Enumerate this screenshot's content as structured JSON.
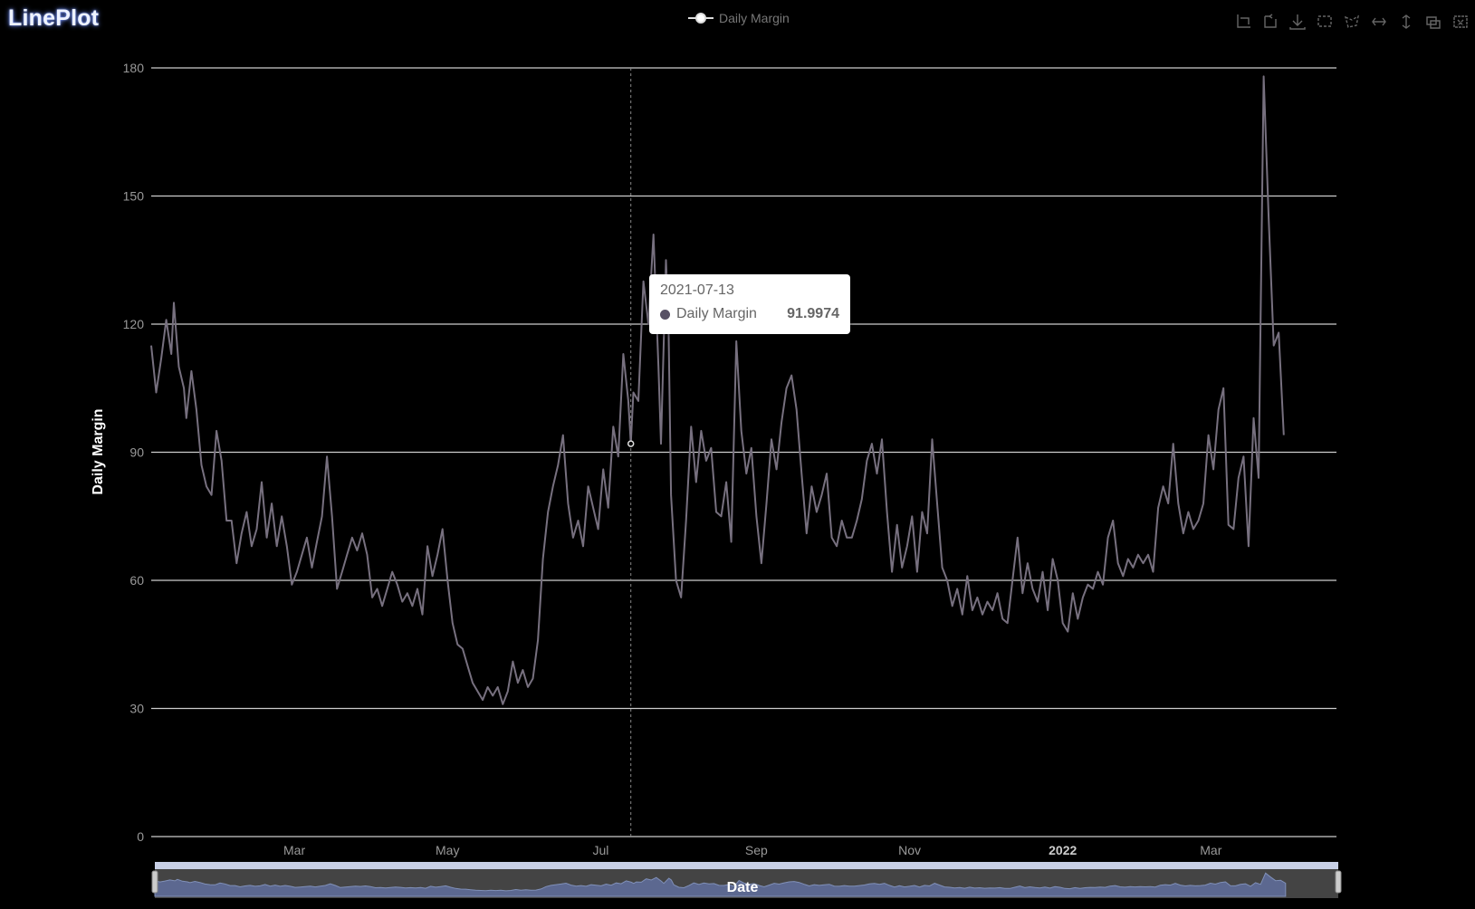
{
  "app": {
    "title": "LinePlot"
  },
  "legend": {
    "label": "Daily Margin"
  },
  "toolbox": {
    "icons": [
      "zoom-icon",
      "zoom-reset-icon",
      "save-image-icon",
      "brush-rect-icon",
      "brush-polygon-icon",
      "brush-line-x-icon",
      "brush-line-y-icon",
      "brush-keep-icon",
      "brush-clear-icon"
    ]
  },
  "tooltip": {
    "date": "2021-07-13",
    "series": "Daily Margin",
    "value": "91.9974"
  },
  "colors": {
    "line": "#77707f",
    "grid": "#cccccc",
    "slider_fill": "#5c6890",
    "tooltip_dot": "#575064"
  },
  "chart_data": {
    "type": "line",
    "title": "",
    "xlabel": "Date",
    "ylabel": "Daily Margin",
    "ylim": [
      0,
      180
    ],
    "yticks": [
      0,
      30,
      60,
      90,
      120,
      150,
      180
    ],
    "xticks": [
      {
        "date": "2021-03-01",
        "label": "Mar",
        "bold": false
      },
      {
        "date": "2021-05-01",
        "label": "May",
        "bold": false
      },
      {
        "date": "2021-07-01",
        "label": "Jul",
        "bold": false
      },
      {
        "date": "2021-09-01",
        "label": "Sep",
        "bold": false
      },
      {
        "date": "2021-11-01",
        "label": "Nov",
        "bold": false
      },
      {
        "date": "2022-01-01",
        "label": "2022",
        "bold": true
      },
      {
        "date": "2022-03-01",
        "label": "Mar",
        "bold": false
      }
    ],
    "xrange": [
      "2021-01-03",
      "2022-04-20"
    ],
    "grid": true,
    "legend": "top-center",
    "highlight": {
      "date": "2021-07-13",
      "value": 91.9974
    },
    "series": [
      {
        "name": "Daily Margin",
        "points": [
          [
            "2021-01-03",
            115
          ],
          [
            "2021-01-05",
            104
          ],
          [
            "2021-01-07",
            112
          ],
          [
            "2021-01-09",
            121
          ],
          [
            "2021-01-11",
            113
          ],
          [
            "2021-01-12",
            125
          ],
          [
            "2021-01-14",
            110
          ],
          [
            "2021-01-16",
            105
          ],
          [
            "2021-01-17",
            98
          ],
          [
            "2021-01-19",
            109
          ],
          [
            "2021-01-21",
            100
          ],
          [
            "2021-01-23",
            87
          ],
          [
            "2021-01-25",
            82
          ],
          [
            "2021-01-27",
            80
          ],
          [
            "2021-01-29",
            95
          ],
          [
            "2021-01-31",
            88
          ],
          [
            "2021-02-02",
            74
          ],
          [
            "2021-02-04",
            74
          ],
          [
            "2021-02-06",
            64
          ],
          [
            "2021-02-08",
            71
          ],
          [
            "2021-02-10",
            76
          ],
          [
            "2021-02-12",
            68
          ],
          [
            "2021-02-14",
            72
          ],
          [
            "2021-02-16",
            83
          ],
          [
            "2021-02-18",
            70
          ],
          [
            "2021-02-20",
            78
          ],
          [
            "2021-02-22",
            68
          ],
          [
            "2021-02-24",
            75
          ],
          [
            "2021-02-26",
            68
          ],
          [
            "2021-02-28",
            59
          ],
          [
            "2021-03-02",
            62
          ],
          [
            "2021-03-04",
            66
          ],
          [
            "2021-03-06",
            70
          ],
          [
            "2021-03-08",
            63
          ],
          [
            "2021-03-10",
            69
          ],
          [
            "2021-03-12",
            75
          ],
          [
            "2021-03-14",
            89
          ],
          [
            "2021-03-16",
            75
          ],
          [
            "2021-03-18",
            58
          ],
          [
            "2021-03-20",
            62
          ],
          [
            "2021-03-22",
            66
          ],
          [
            "2021-03-24",
            70
          ],
          [
            "2021-03-26",
            67
          ],
          [
            "2021-03-28",
            71
          ],
          [
            "2021-03-30",
            66
          ],
          [
            "2021-04-01",
            56
          ],
          [
            "2021-04-03",
            58
          ],
          [
            "2021-04-05",
            54
          ],
          [
            "2021-04-07",
            58
          ],
          [
            "2021-04-09",
            62
          ],
          [
            "2021-04-11",
            59
          ],
          [
            "2021-04-13",
            55
          ],
          [
            "2021-04-15",
            57
          ],
          [
            "2021-04-17",
            54
          ],
          [
            "2021-04-19",
            58
          ],
          [
            "2021-04-21",
            52
          ],
          [
            "2021-04-23",
            68
          ],
          [
            "2021-04-25",
            61
          ],
          [
            "2021-04-27",
            66
          ],
          [
            "2021-04-29",
            72
          ],
          [
            "2021-05-01",
            60
          ],
          [
            "2021-05-03",
            50
          ],
          [
            "2021-05-05",
            45
          ],
          [
            "2021-05-07",
            44
          ],
          [
            "2021-05-09",
            40
          ],
          [
            "2021-05-11",
            36
          ],
          [
            "2021-05-13",
            34
          ],
          [
            "2021-05-15",
            32
          ],
          [
            "2021-05-17",
            35
          ],
          [
            "2021-05-19",
            33
          ],
          [
            "2021-05-21",
            35
          ],
          [
            "2021-05-23",
            31
          ],
          [
            "2021-05-25",
            34
          ],
          [
            "2021-05-27",
            41
          ],
          [
            "2021-05-29",
            36
          ],
          [
            "2021-05-31",
            39
          ],
          [
            "2021-06-02",
            35
          ],
          [
            "2021-06-04",
            37
          ],
          [
            "2021-06-06",
            46
          ],
          [
            "2021-06-08",
            65
          ],
          [
            "2021-06-10",
            76
          ],
          [
            "2021-06-12",
            82
          ],
          [
            "2021-06-14",
            87
          ],
          [
            "2021-06-16",
            94
          ],
          [
            "2021-06-18",
            78
          ],
          [
            "2021-06-20",
            70
          ],
          [
            "2021-06-22",
            74
          ],
          [
            "2021-06-24",
            68
          ],
          [
            "2021-06-26",
            82
          ],
          [
            "2021-06-28",
            77
          ],
          [
            "2021-06-30",
            72
          ],
          [
            "2021-07-02",
            86
          ],
          [
            "2021-07-04",
            77
          ],
          [
            "2021-07-06",
            96
          ],
          [
            "2021-07-08",
            89
          ],
          [
            "2021-07-10",
            113
          ],
          [
            "2021-07-12",
            102
          ],
          [
            "2021-07-13",
            92
          ],
          [
            "2021-07-14",
            104
          ],
          [
            "2021-07-16",
            102
          ],
          [
            "2021-07-18",
            130
          ],
          [
            "2021-07-20",
            120
          ],
          [
            "2021-07-22",
            141
          ],
          [
            "2021-07-24",
            110
          ],
          [
            "2021-07-25",
            92
          ],
          [
            "2021-07-27",
            135
          ],
          [
            "2021-07-28",
            120
          ],
          [
            "2021-07-29",
            80
          ],
          [
            "2021-07-31",
            60
          ],
          [
            "2021-08-02",
            56
          ],
          [
            "2021-08-04",
            74
          ],
          [
            "2021-08-06",
            96
          ],
          [
            "2021-08-08",
            83
          ],
          [
            "2021-08-10",
            95
          ],
          [
            "2021-08-12",
            88
          ],
          [
            "2021-08-14",
            91
          ],
          [
            "2021-08-16",
            76
          ],
          [
            "2021-08-18",
            75
          ],
          [
            "2021-08-20",
            83
          ],
          [
            "2021-08-22",
            69
          ],
          [
            "2021-08-24",
            116
          ],
          [
            "2021-08-26",
            95
          ],
          [
            "2021-08-28",
            85
          ],
          [
            "2021-08-30",
            91
          ],
          [
            "2021-09-01",
            75
          ],
          [
            "2021-09-03",
            64
          ],
          [
            "2021-09-05",
            78
          ],
          [
            "2021-09-07",
            93
          ],
          [
            "2021-09-09",
            86
          ],
          [
            "2021-09-11",
            97
          ],
          [
            "2021-09-13",
            105
          ],
          [
            "2021-09-15",
            108
          ],
          [
            "2021-09-17",
            100
          ],
          [
            "2021-09-19",
            85
          ],
          [
            "2021-09-21",
            71
          ],
          [
            "2021-09-23",
            82
          ],
          [
            "2021-09-25",
            76
          ],
          [
            "2021-09-27",
            80
          ],
          [
            "2021-09-29",
            85
          ],
          [
            "2021-10-01",
            70
          ],
          [
            "2021-10-03",
            68
          ],
          [
            "2021-10-05",
            74
          ],
          [
            "2021-10-07",
            70
          ],
          [
            "2021-10-09",
            70
          ],
          [
            "2021-10-11",
            74
          ],
          [
            "2021-10-13",
            79
          ],
          [
            "2021-10-15",
            88
          ],
          [
            "2021-10-17",
            92
          ],
          [
            "2021-10-19",
            85
          ],
          [
            "2021-10-21",
            93
          ],
          [
            "2021-10-23",
            76
          ],
          [
            "2021-10-25",
            62
          ],
          [
            "2021-10-27",
            73
          ],
          [
            "2021-10-29",
            63
          ],
          [
            "2021-10-31",
            68
          ],
          [
            "2021-11-02",
            75
          ],
          [
            "2021-11-04",
            62
          ],
          [
            "2021-11-06",
            76
          ],
          [
            "2021-11-08",
            71
          ],
          [
            "2021-11-10",
            93
          ],
          [
            "2021-11-12",
            78
          ],
          [
            "2021-11-14",
            63
          ],
          [
            "2021-11-16",
            60
          ],
          [
            "2021-11-18",
            54
          ],
          [
            "2021-11-20",
            58
          ],
          [
            "2021-11-22",
            52
          ],
          [
            "2021-11-24",
            61
          ],
          [
            "2021-11-26",
            53
          ],
          [
            "2021-11-28",
            56
          ],
          [
            "2021-11-30",
            52
          ],
          [
            "2021-12-02",
            55
          ],
          [
            "2021-12-04",
            53
          ],
          [
            "2021-12-06",
            57
          ],
          [
            "2021-12-08",
            51
          ],
          [
            "2021-12-10",
            50
          ],
          [
            "2021-12-12",
            60
          ],
          [
            "2021-12-14",
            70
          ],
          [
            "2021-12-16",
            57
          ],
          [
            "2021-12-18",
            64
          ],
          [
            "2021-12-20",
            58
          ],
          [
            "2021-12-22",
            55
          ],
          [
            "2021-12-24",
            62
          ],
          [
            "2021-12-26",
            53
          ],
          [
            "2021-12-28",
            65
          ],
          [
            "2021-12-30",
            60
          ],
          [
            "2022-01-01",
            50
          ],
          [
            "2022-01-03",
            48
          ],
          [
            "2022-01-05",
            57
          ],
          [
            "2022-01-07",
            51
          ],
          [
            "2022-01-09",
            56
          ],
          [
            "2022-01-11",
            59
          ],
          [
            "2022-01-13",
            58
          ],
          [
            "2022-01-15",
            62
          ],
          [
            "2022-01-17",
            59
          ],
          [
            "2022-01-19",
            70
          ],
          [
            "2022-01-21",
            74
          ],
          [
            "2022-01-23",
            64
          ],
          [
            "2022-01-25",
            61
          ],
          [
            "2022-01-27",
            65
          ],
          [
            "2022-01-29",
            63
          ],
          [
            "2022-01-31",
            66
          ],
          [
            "2022-02-02",
            64
          ],
          [
            "2022-02-04",
            66
          ],
          [
            "2022-02-06",
            62
          ],
          [
            "2022-02-08",
            77
          ],
          [
            "2022-02-10",
            82
          ],
          [
            "2022-02-12",
            78
          ],
          [
            "2022-02-14",
            92
          ],
          [
            "2022-02-16",
            78
          ],
          [
            "2022-02-18",
            71
          ],
          [
            "2022-02-20",
            76
          ],
          [
            "2022-02-22",
            72
          ],
          [
            "2022-02-24",
            74
          ],
          [
            "2022-02-26",
            78
          ],
          [
            "2022-02-28",
            94
          ],
          [
            "2022-03-02",
            86
          ],
          [
            "2022-03-04",
            100
          ],
          [
            "2022-03-06",
            105
          ],
          [
            "2022-03-08",
            73
          ],
          [
            "2022-03-10",
            72
          ],
          [
            "2022-03-12",
            84
          ],
          [
            "2022-03-14",
            89
          ],
          [
            "2022-03-16",
            68
          ],
          [
            "2022-03-18",
            98
          ],
          [
            "2022-03-20",
            84
          ],
          [
            "2022-03-22",
            178
          ],
          [
            "2022-03-24",
            145
          ],
          [
            "2022-03-26",
            115
          ],
          [
            "2022-03-28",
            118
          ],
          [
            "2022-03-30",
            94
          ]
        ]
      }
    ]
  },
  "datazoom": {
    "start_fraction": 0.0,
    "end_fraction": 1.0
  }
}
